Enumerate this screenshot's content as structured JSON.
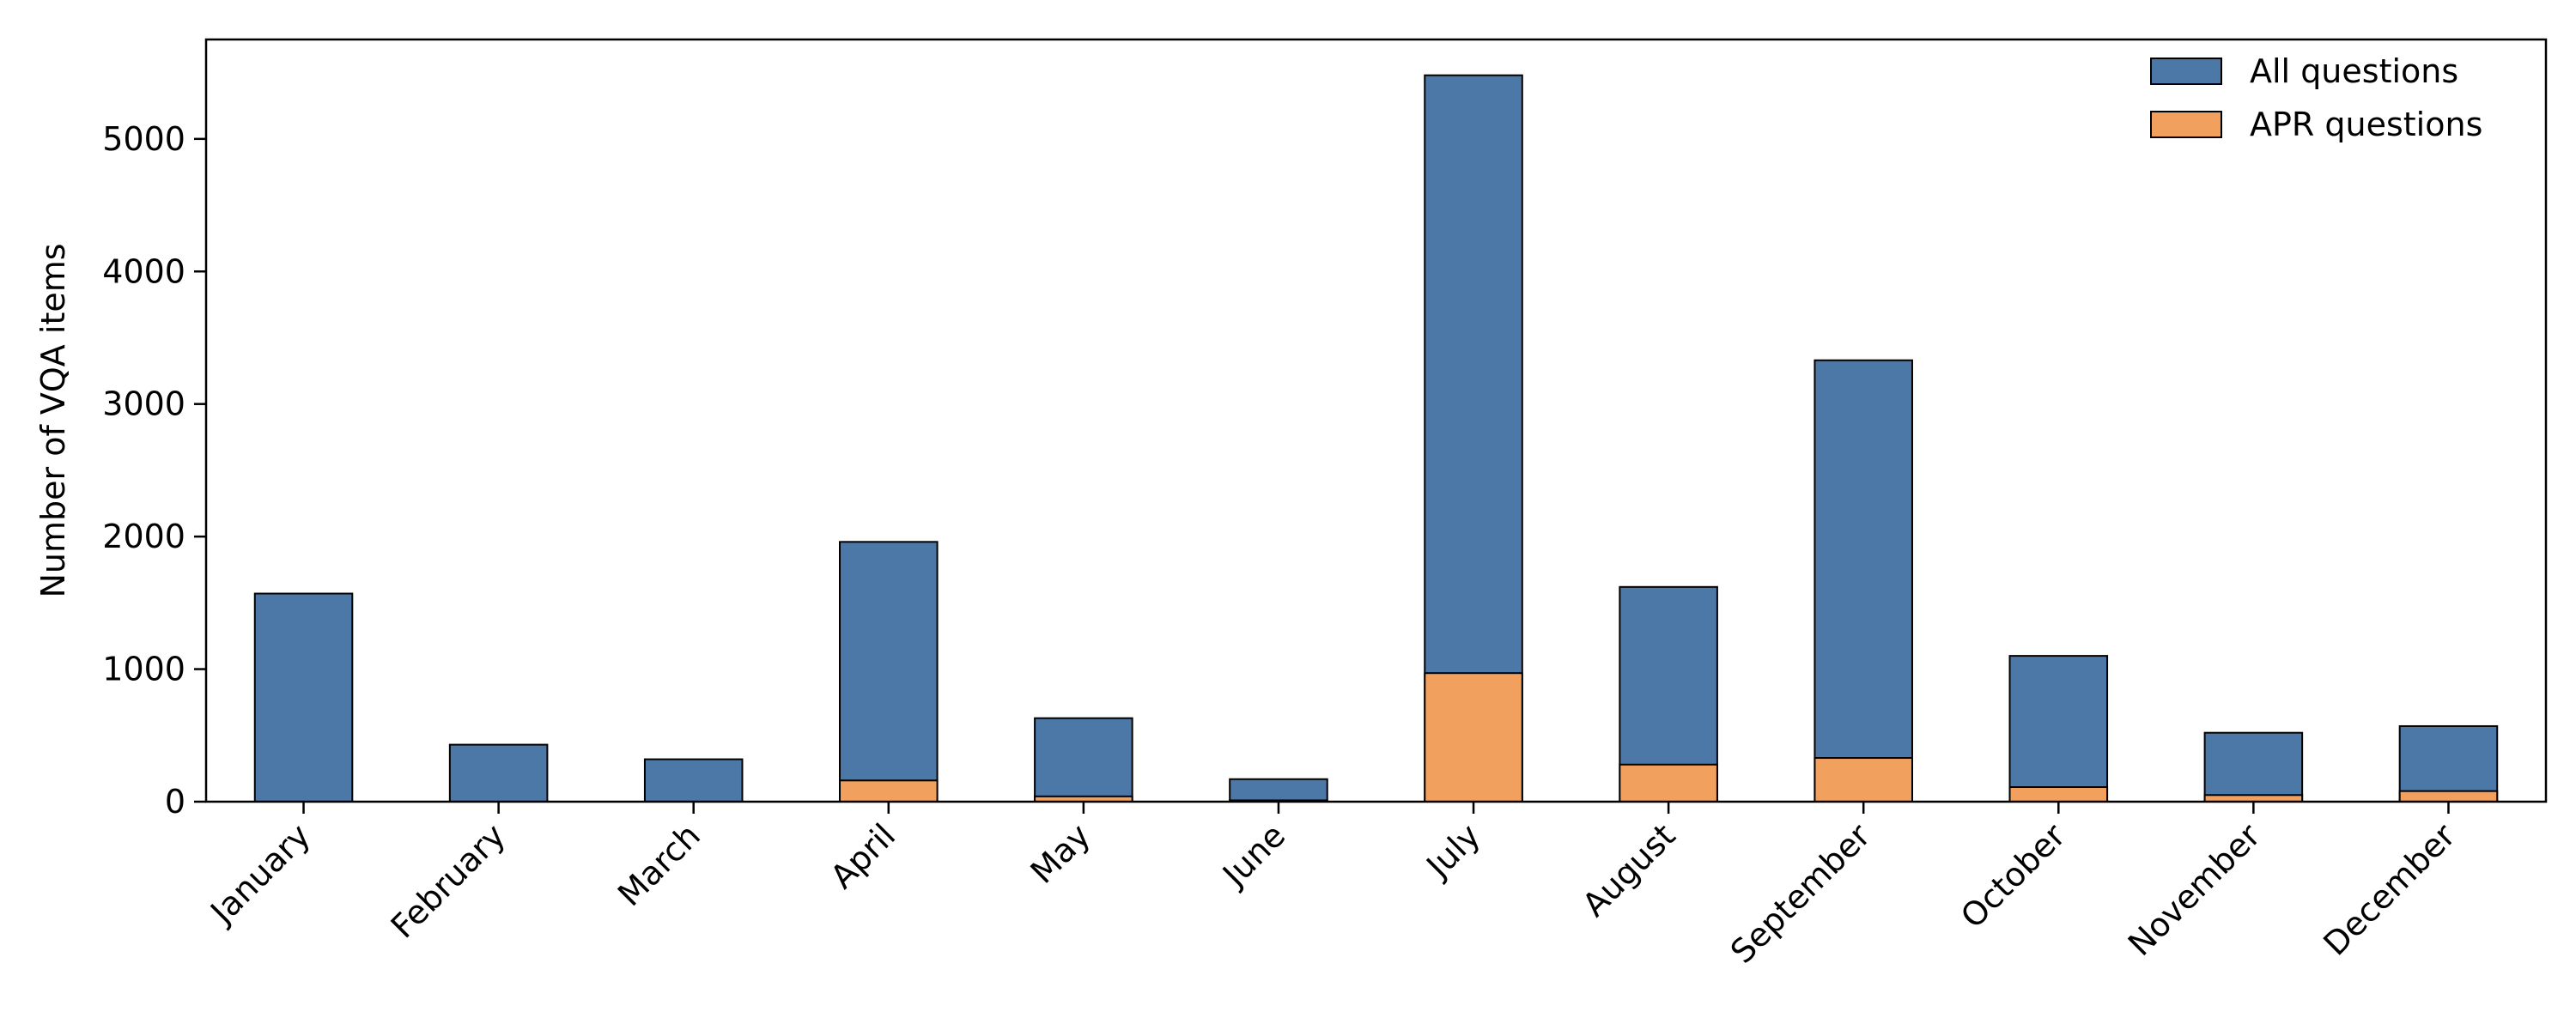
{
  "chart_data": {
    "type": "bar",
    "stacked": false,
    "overlay": true,
    "categories": [
      "January",
      "February",
      "March",
      "April",
      "May",
      "June",
      "July",
      "August",
      "September",
      "October",
      "November",
      "December"
    ],
    "series": [
      {
        "name": "All questions",
        "color": "#4c78a8",
        "values": [
          1570,
          430,
          320,
          1960,
          630,
          170,
          5480,
          1620,
          3330,
          1100,
          520,
          570
        ]
      },
      {
        "name": "APR questions",
        "color": "#f2a05d",
        "values": [
          0,
          0,
          0,
          160,
          40,
          10,
          970,
          280,
          330,
          110,
          50,
          80
        ]
      }
    ],
    "title": "",
    "xlabel": "",
    "ylabel": "Number of VQA items",
    "ylim": [
      0,
      5750
    ],
    "yticks": [
      0,
      1000,
      2000,
      3000,
      4000,
      5000
    ],
    "grid": false,
    "legend_position": "top-right"
  }
}
